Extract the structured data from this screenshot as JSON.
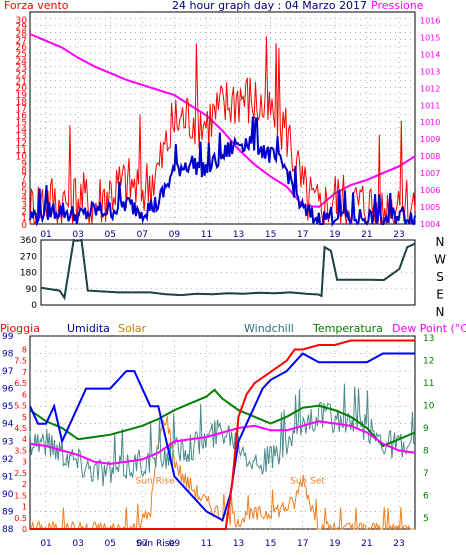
{
  "colors": {
    "bg": "#ffffff",
    "panel_border": "#000000",
    "grid": "#7a7a7a",
    "wind_speed": "#ff0000",
    "wind_avg": "#0000cc",
    "pressure": "#ff00ff",
    "direction": "#1e4040",
    "rain": "#ff0000",
    "humidity": "#0000ff",
    "solar": "#f08020",
    "windchill": "#4a8a8a",
    "temperature": "#008000",
    "dewpoint": "#ff00ff"
  },
  "labels": {
    "wind_title": "Forza vento",
    "graph_title": "24 hour graph day : 04 Marzo 2017",
    "pressure_title": "Pressione",
    "rain": "Pioggia",
    "humidity": "Umidita",
    "solar": "Solar",
    "windchill": "Windchill",
    "temperature": "Temperatura",
    "dewpoint": "Dew Point (°C)",
    "sun_rise": "Sun Rise",
    "sun_set": "Sun Set",
    "sun_rise_axis": "Sun Rise"
  },
  "chart_data": [
    {
      "type": "line",
      "name": "wind-pressure",
      "x_ticks": [
        "01",
        "03",
        "05",
        "07",
        "09",
        "11",
        "13",
        "15",
        "17",
        "19",
        "21",
        "23"
      ],
      "x_range": [
        0,
        24
      ],
      "y_left_range": [
        0,
        31
      ],
      "y_left_ticks": [
        0,
        1,
        2,
        3,
        4,
        5,
        6,
        7,
        8,
        9,
        10,
        11,
        12,
        13,
        14,
        15,
        16,
        17,
        18,
        19,
        20,
        21,
        22,
        23,
        24,
        25,
        26,
        27,
        28,
        29,
        30
      ],
      "y_right_range": [
        1004,
        1016.5
      ],
      "y_right_ticks": [
        1004,
        1005,
        1006,
        1007,
        1008,
        1009,
        1010,
        1011,
        1012,
        1013,
        1014,
        1015,
        1016
      ],
      "grid": true,
      "series": [
        {
          "key": "pressure",
          "axis": "right",
          "x": [
            0,
            1,
            2,
            3,
            4,
            5,
            6,
            7,
            8,
            9,
            10,
            11,
            12,
            13,
            14,
            15,
            16,
            17,
            18,
            19,
            20,
            21,
            22,
            23,
            24
          ],
          "y": [
            1015.2,
            1014.8,
            1014.4,
            1013.8,
            1013.3,
            1012.9,
            1012.5,
            1012.2,
            1011.9,
            1011.6,
            1011.0,
            1010.4,
            1009.5,
            1008.4,
            1007.5,
            1006.8,
            1006.2,
            1005.1,
            1005.0,
            1005.8,
            1006.3,
            1006.6,
            1007.0,
            1007.4,
            1008.0
          ]
        },
        {
          "key": "wind_speed",
          "axis": "left",
          "jagged": true,
          "peak_extra": 9,
          "x": [
            0,
            1,
            2,
            3,
            4,
            5,
            6,
            7,
            8,
            9,
            10,
            11,
            12,
            13,
            14,
            15,
            16,
            17,
            18,
            19,
            20,
            21,
            22,
            23,
            24
          ],
          "y": [
            2,
            4,
            3,
            4,
            3,
            5,
            6,
            5,
            8,
            15,
            16,
            15,
            17,
            19,
            18,
            16,
            14,
            5,
            2,
            4,
            3,
            3,
            2,
            4,
            3
          ]
        },
        {
          "key": "wind_avg",
          "axis": "left",
          "jagged": true,
          "peak_extra": 3,
          "x": [
            0,
            1,
            2,
            3,
            4,
            5,
            6,
            7,
            8,
            9,
            10,
            11,
            12,
            13,
            14,
            15,
            16,
            17,
            18,
            19,
            20,
            21,
            22,
            23,
            24
          ],
          "y": [
            1,
            2,
            2,
            1,
            2,
            2,
            3,
            2,
            3,
            8,
            9,
            8,
            10,
            12,
            12,
            10,
            8,
            2,
            0.5,
            1.5,
            1,
            1,
            0.5,
            1.5,
            1
          ]
        }
      ]
    },
    {
      "type": "line",
      "name": "wind-direction",
      "x_range": [
        0,
        24
      ],
      "y_range": [
        0,
        360
      ],
      "y_ticks": [
        0,
        90,
        180,
        270,
        360
      ],
      "compass_right": [
        "N",
        "W",
        "S",
        "E",
        "N"
      ],
      "series": [
        {
          "key": "direction",
          "axis": "left",
          "x": [
            0,
            1.2,
            1.5,
            2.1,
            2.3,
            2.6,
            3.0,
            4,
            5,
            6,
            7,
            8,
            9,
            10,
            11,
            12,
            13,
            14,
            15,
            16,
            17,
            17.8,
            18.0,
            18.2,
            18.6,
            19,
            20,
            21,
            22,
            23,
            23.5,
            24
          ],
          "y": [
            95,
            80,
            40,
            360,
            355,
            360,
            80,
            75,
            70,
            70,
            70,
            60,
            55,
            62,
            60,
            65,
            62,
            68,
            65,
            70,
            62,
            58,
            50,
            320,
            300,
            140,
            140,
            140,
            138,
            200,
            320,
            340
          ]
        }
      ]
    },
    {
      "type": "line",
      "name": "weather",
      "x_ticks": [
        "01",
        "03",
        "05",
        "07",
        "09",
        "11",
        "13",
        "15",
        "17",
        "19",
        "21",
        "23"
      ],
      "x_range": [
        0,
        24
      ],
      "humidity_range": [
        88,
        99
      ],
      "humidity_ticks": [
        88,
        89,
        90,
        91,
        92,
        93,
        94,
        95,
        96,
        97,
        98,
        99
      ],
      "rain_range": [
        0,
        8.6
      ],
      "rain_ticks": [
        0,
        0.5,
        1,
        1.5,
        2,
        2.5,
        3,
        3.5,
        4,
        4.5,
        5,
        5.5,
        6,
        6.5,
        7,
        7.5,
        8
      ],
      "temp_range": [
        4.5,
        13.1
      ],
      "temp_ticks": [
        5,
        6,
        7,
        8,
        9,
        10,
        11,
        12,
        13
      ],
      "grid": true,
      "series": [
        {
          "key": "rain",
          "axis": "rain",
          "x": [
            0,
            12.2,
            12.6,
            13.0,
            13.5,
            14.0,
            15.0,
            16.0,
            16.5,
            17,
            18,
            19,
            20,
            24
          ],
          "y": [
            0,
            0,
            2.0,
            5.0,
            6.0,
            6.5,
            7.0,
            7.5,
            8.0,
            8.0,
            8.2,
            8.2,
            8.4,
            8.4
          ]
        },
        {
          "key": "humidity",
          "axis": "humidity",
          "x": [
            0,
            0.5,
            1.0,
            1.5,
            2.0,
            2.5,
            3.0,
            3.5,
            4.0,
            5.0,
            6.0,
            6.5,
            7.0,
            7.5,
            8.0,
            8.5,
            9.0,
            10.0,
            11.0,
            12.0,
            12.5,
            13.0,
            14.0,
            14.5,
            15.0,
            16.0,
            16.5,
            17.0,
            18.0,
            19.0,
            20.0,
            21.0,
            22.0,
            23.0,
            24.0
          ],
          "y": [
            95,
            94,
            94,
            95,
            93,
            94,
            95,
            96,
            96,
            96,
            97,
            97,
            96,
            95,
            95,
            93,
            91,
            90,
            89,
            88.5,
            90,
            93,
            95,
            96,
            96.5,
            97,
            97.5,
            98,
            97.5,
            97.5,
            97.5,
            97.5,
            98,
            98,
            98
          ]
        },
        {
          "key": "solar",
          "axis": "humidity",
          "jagged": true,
          "peak_extra": 0.5,
          "x": [
            0,
            6.5,
            7.0,
            7.5,
            8.0,
            8.5,
            9.0,
            9.5,
            10,
            11,
            12,
            13,
            14,
            15,
            16,
            16.5,
            17.0,
            17.5,
            18,
            24
          ],
          "y": [
            88,
            88,
            88.5,
            89,
            93,
            94.5,
            92,
            91,
            90.5,
            89.5,
            88.8,
            88.6,
            88.8,
            89,
            89.3,
            89.5,
            91,
            89.5,
            88,
            88
          ]
        },
        {
          "key": "windchill",
          "axis": "temp",
          "jagged": true,
          "peak_extra": 0.7,
          "x": [
            0,
            1,
            2,
            3,
            4,
            5,
            6,
            7,
            8,
            9,
            10,
            11,
            12,
            13,
            14,
            15,
            16,
            17,
            18,
            19,
            20,
            21,
            22,
            23,
            24
          ],
          "y": [
            8.5,
            8.4,
            8.0,
            7.5,
            7.2,
            7.0,
            7.3,
            7.5,
            7.6,
            8.0,
            8.2,
            8.5,
            9.0,
            8.5,
            7.5,
            7.6,
            8.2,
            9.2,
            9.6,
            9.4,
            9.2,
            9.0,
            8.5,
            8.2,
            8.0
          ]
        },
        {
          "key": "temperature",
          "axis": "temp",
          "x": [
            0,
            1,
            2,
            3,
            4,
            5,
            6,
            7,
            8,
            9,
            10,
            11,
            11.5,
            12,
            13,
            14,
            15,
            16,
            17,
            18,
            19,
            20,
            21,
            22,
            23,
            24
          ],
          "y": [
            9.8,
            9.3,
            9.0,
            8.5,
            8.6,
            8.7,
            8.9,
            9.1,
            9.4,
            9.8,
            10.1,
            10.4,
            10.7,
            10.3,
            9.8,
            9.5,
            9.2,
            9.5,
            9.9,
            10.0,
            9.8,
            9.5,
            9.0,
            8.2,
            8.5,
            8.8
          ]
        },
        {
          "key": "dewpoint",
          "axis": "temp",
          "x": [
            0,
            1,
            2,
            3,
            4,
            5,
            6,
            7,
            8,
            9,
            10,
            11,
            12,
            13,
            14,
            15,
            16,
            17,
            18,
            19,
            20,
            21,
            22,
            23,
            24
          ],
          "y": [
            8.3,
            8.2,
            8.0,
            7.8,
            7.5,
            7.4,
            7.5,
            7.6,
            7.9,
            8.4,
            8.5,
            8.6,
            8.8,
            9.0,
            9.1,
            8.9,
            8.9,
            9.1,
            9.3,
            9.2,
            9.1,
            8.8,
            8.3,
            8.0,
            7.9
          ]
        }
      ],
      "annotations": [
        {
          "text": "Sun Rise",
          "x": 7.8,
          "y_hum": 90.6
        },
        {
          "text": "Sun Set",
          "x": 17.3,
          "y_hum": 90.6
        }
      ]
    }
  ]
}
